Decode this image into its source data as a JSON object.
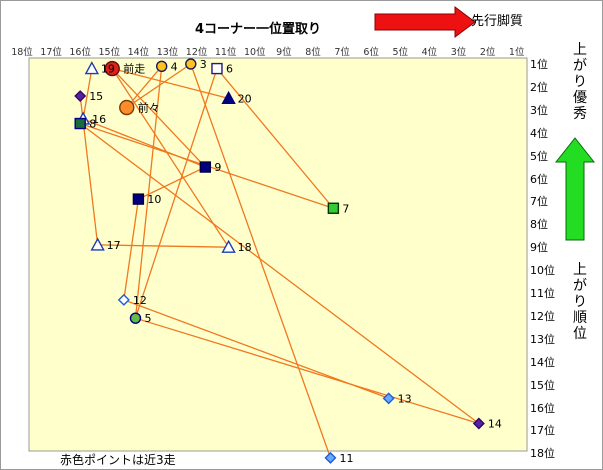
{
  "chart_data": {
    "type": "scatter",
    "title": "4コーナー一位置取り",
    "top_right_label": "先行脚質",
    "right_upper_label": "上がり優秀",
    "right_lower_label": "上がり順位",
    "footnote": "赤色ポイントは近3走",
    "x_axis": {
      "meaning": "4コーナー位置",
      "reversed": true,
      "range": [
        1,
        18
      ],
      "tick_labels": [
        "18位",
        "17位",
        "16位",
        "15位",
        "14位",
        "13位",
        "12位",
        "11位",
        "10位",
        "9位",
        "8位",
        "7位",
        "6位",
        "5位",
        "4位",
        "3位",
        "2位",
        "1位"
      ]
    },
    "y_axis": {
      "meaning": "上がり順位",
      "reversed": true,
      "range": [
        1,
        18
      ],
      "tick_labels": [
        "1位",
        "2位",
        "3位",
        "4位",
        "5位",
        "6位",
        "7位",
        "8位",
        "9位",
        "10位",
        "11位",
        "12位",
        "13位",
        "14位",
        "15位",
        "16位",
        "17位",
        "18位"
      ]
    },
    "grid": false,
    "colors": {
      "plot_bg": "#ffffcc",
      "line": "#f07820",
      "navy": "#000080",
      "purple": "#5a1fa8",
      "blue": "#1e5bd8",
      "light_blue": "#66aaff",
      "green": "#33cc33",
      "red": "#e0201c",
      "orange_point": "#ff8c2a",
      "gold": "#ffc21e",
      "arrow_red": "#ee1111",
      "arrow_green": "#22dd22"
    },
    "points": [
      {
        "label": "前走",
        "x": 14.9,
        "y": 1.2,
        "marker": "circle",
        "fill": "#e0201c",
        "stroke": "#5a1010",
        "r": 7
      },
      {
        "label": "前々",
        "x": 14.4,
        "y": 2.9,
        "marker": "circle",
        "fill": "#ff8c2a",
        "stroke": "#7a3a00",
        "r": 7
      },
      {
        "label": "4",
        "x": 13.2,
        "y": 1.1,
        "marker": "circle",
        "fill": "#ffc21e",
        "stroke": "#1a1a5a",
        "r": 5
      },
      {
        "label": "3",
        "x": 12.2,
        "y": 1.0,
        "marker": "circle",
        "fill": "#ffc21e",
        "stroke": "#1a1a5a",
        "r": 5
      },
      {
        "label": "6",
        "x": 11.3,
        "y": 1.2,
        "marker": "square",
        "fill": "#ffffff",
        "stroke": "#1a1a8a"
      },
      {
        "label": "20",
        "x": 10.9,
        "y": 2.5,
        "marker": "triangle",
        "fill": "#000080",
        "stroke": "#000080"
      },
      {
        "label": "19",
        "x": 15.6,
        "y": 1.2,
        "marker": "triangle",
        "fill": "#ffffff",
        "stroke": "#1e3cb4"
      },
      {
        "label": "15",
        "x": 16.0,
        "y": 2.4,
        "marker": "diamond",
        "fill": "#5a1fa8",
        "stroke": "#2a0a60"
      },
      {
        "label": "16",
        "x": 15.9,
        "y": 3.4,
        "marker": "triangle",
        "fill": "#ffffff",
        "stroke": "#1e3cb4"
      },
      {
        "label": "8",
        "x": 16.0,
        "y": 3.6,
        "marker": "square",
        "fill": "#1a6a3a",
        "stroke": "#000080"
      },
      {
        "label": "9",
        "x": 11.7,
        "y": 5.5,
        "marker": "square",
        "fill": "#000080",
        "stroke": "#000040"
      },
      {
        "label": "10",
        "x": 14.0,
        "y": 6.9,
        "marker": "square",
        "fill": "#000080",
        "stroke": "#000040"
      },
      {
        "label": "7",
        "x": 7.3,
        "y": 7.3,
        "marker": "square",
        "fill": "#33cc33",
        "stroke": "#003300"
      },
      {
        "label": "17",
        "x": 15.4,
        "y": 8.9,
        "marker": "triangle",
        "fill": "#ffffff",
        "stroke": "#1e3cb4"
      },
      {
        "label": "18",
        "x": 10.9,
        "y": 9.0,
        "marker": "triangle",
        "fill": "#ffffff",
        "stroke": "#1e3cb4"
      },
      {
        "label": "12",
        "x": 14.5,
        "y": 11.3,
        "marker": "diamond",
        "fill": "#ffffff",
        "stroke": "#1e5bd8"
      },
      {
        "label": "5",
        "x": 14.1,
        "y": 12.1,
        "marker": "circle",
        "fill": "#66bb44",
        "stroke": "#000080",
        "r": 5
      },
      {
        "label": "13",
        "x": 5.4,
        "y": 15.6,
        "marker": "diamond",
        "fill": "#66aaff",
        "stroke": "#1e5bd8"
      },
      {
        "label": "14",
        "x": 2.3,
        "y": 16.7,
        "marker": "diamond",
        "fill": "#5a1fa8",
        "stroke": "#2a0a60"
      },
      {
        "label": "11",
        "x": 7.4,
        "y": 18.2,
        "marker": "diamond",
        "fill": "#66aaff",
        "stroke": "#1e5bd8"
      }
    ],
    "connections": [
      [
        "前走",
        "20"
      ],
      [
        "前走",
        "9"
      ],
      [
        "前走",
        "18"
      ],
      [
        "前々",
        "4"
      ],
      [
        "前々",
        "3"
      ],
      [
        "4",
        "5"
      ],
      [
        "3",
        "11"
      ],
      [
        "6",
        "5"
      ],
      [
        "6",
        "7"
      ],
      [
        "16",
        "9"
      ],
      [
        "8",
        "7"
      ],
      [
        "15",
        "17"
      ],
      [
        "17",
        "18"
      ],
      [
        "10",
        "9"
      ],
      [
        "10",
        "12"
      ],
      [
        "12",
        "13"
      ],
      [
        "5",
        "14"
      ],
      [
        "19",
        "16"
      ],
      [
        "8",
        "14"
      ]
    ]
  }
}
